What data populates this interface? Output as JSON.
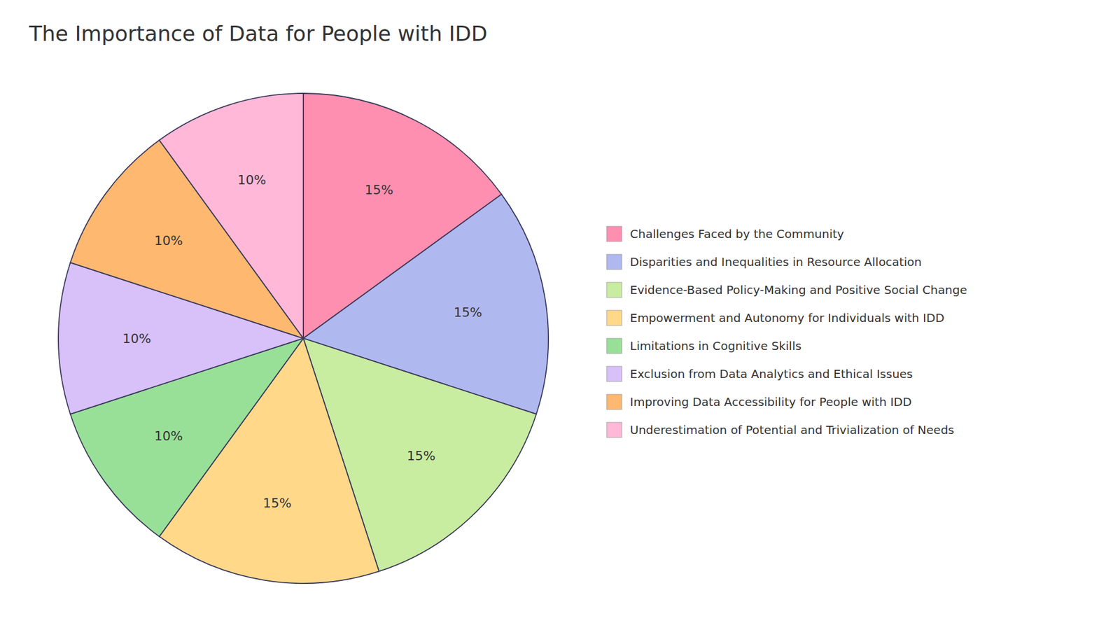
{
  "chart_data": {
    "type": "pie",
    "title": "The Importance of Data for People with IDD",
    "categories": [
      "Challenges Faced by the Community",
      "Disparities and Inequalities in Resource Allocation",
      "Evidence-Based Policy-Making and Positive Social Change",
      "Empowerment and Autonomy for Individuals with IDD",
      "Limitations in Cognitive Skills",
      "Exclusion from Data Analytics and Ethical Issues",
      "Improving Data Accessibility for People with IDD",
      "Underestimation of Potential and Trivialization of Needs"
    ],
    "values": [
      15,
      15,
      15,
      15,
      10,
      10,
      10,
      10
    ],
    "value_labels": [
      "15%",
      "15%",
      "15%",
      "15%",
      "10%",
      "10%",
      "10%",
      "10%"
    ],
    "colors": [
      "#FF8FB0",
      "#B0B8F0",
      "#C8ECA0",
      "#FFD88A",
      "#98E098",
      "#D8C0F8",
      "#FFB870",
      "#FFB8D8"
    ],
    "data_labels": true,
    "legend": "right"
  }
}
